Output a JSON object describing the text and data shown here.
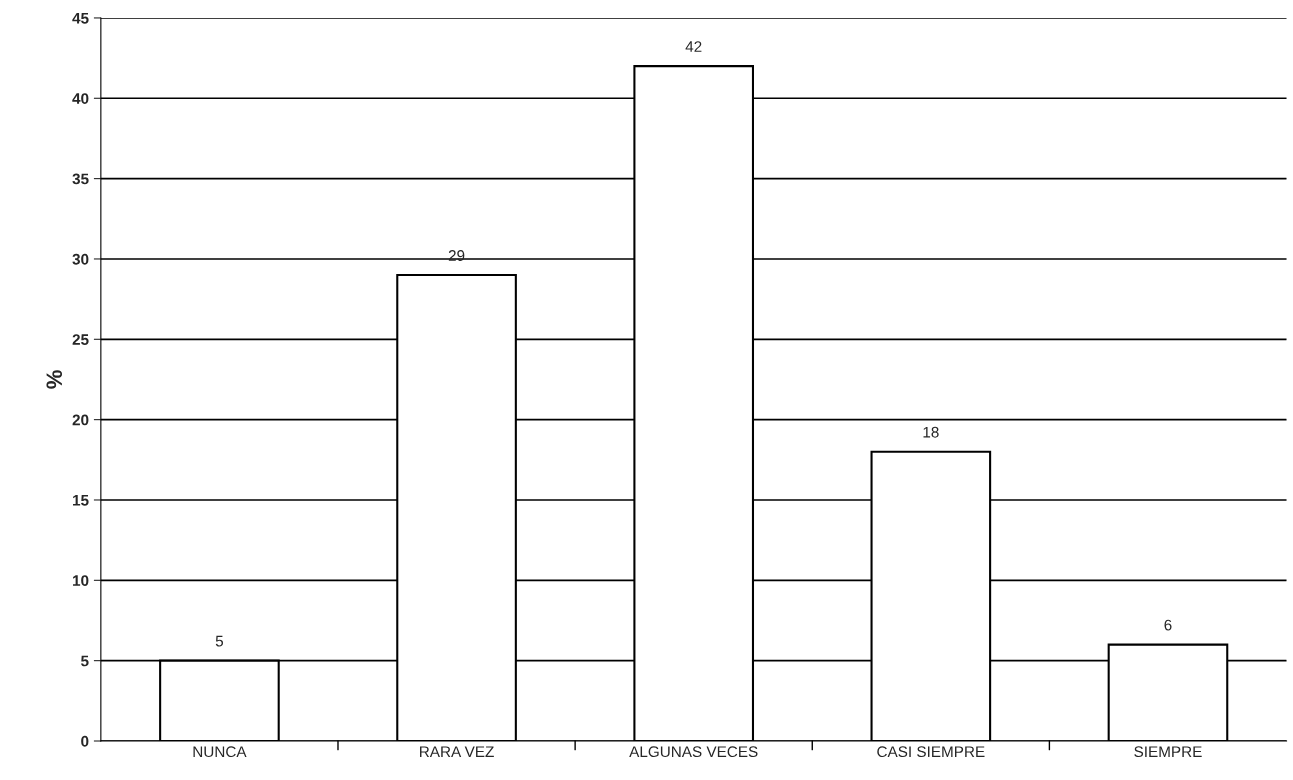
{
  "chart_data": {
    "type": "bar",
    "ylabel": "%",
    "categories": [
      "NUNCA",
      "RARA VEZ",
      "ALGUNAS VECES",
      "CASI SIEMPRE",
      "SIEMPRE"
    ],
    "values": [
      5,
      29,
      42,
      18,
      6
    ],
    "color": "#ffffff",
    "ylim": [
      0,
      45
    ],
    "yticks": [
      0,
      5,
      10,
      15,
      20,
      25,
      30,
      35,
      40,
      45
    ],
    "grid": "y",
    "data_labels": true
  }
}
